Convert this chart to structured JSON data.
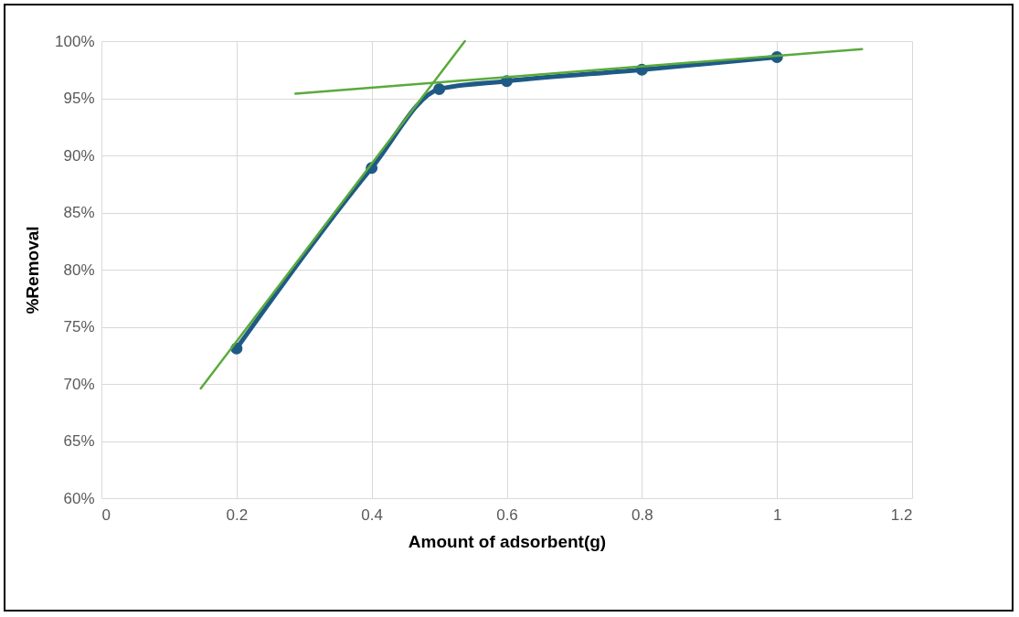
{
  "chart_data": {
    "type": "line",
    "xlabel": "Amount of  adsorbent(g)",
    "ylabel": "%Removal",
    "xlim": [
      0,
      1.2
    ],
    "xticks": [
      0,
      0.2,
      0.4,
      0.6,
      0.8,
      1,
      1.2
    ],
    "ylim": [
      60,
      100
    ],
    "yticks": [
      {
        "value": 60,
        "label": "60%"
      },
      {
        "value": 65,
        "label": "65%"
      },
      {
        "value": 70,
        "label": "70%"
      },
      {
        "value": 75,
        "label": "75%"
      },
      {
        "value": 80,
        "label": "80%"
      },
      {
        "value": 85,
        "label": "85%"
      },
      {
        "value": 90,
        "label": "90%"
      },
      {
        "value": 95,
        "label": "95%"
      },
      {
        "value": 100,
        "label": "100%"
      }
    ],
    "grid": true,
    "series": [
      {
        "color": "#1f5a86",
        "marker": "circle",
        "x": [
          0.2,
          0.4,
          0.5,
          0.6,
          0.8,
          1
        ],
        "values": [
          73.1,
          88.9,
          95.8,
          96.5,
          97.5,
          98.6
        ]
      },
      {
        "color": "#5aaa3c",
        "marker": "none",
        "x": [
          0.147,
          0.538
        ],
        "values": [
          69.6,
          100
        ]
      },
      {
        "color": "#5aaa3c",
        "marker": "none",
        "x": [
          0.287,
          1.126
        ],
        "values": [
          95.4,
          99.3
        ]
      }
    ]
  }
}
